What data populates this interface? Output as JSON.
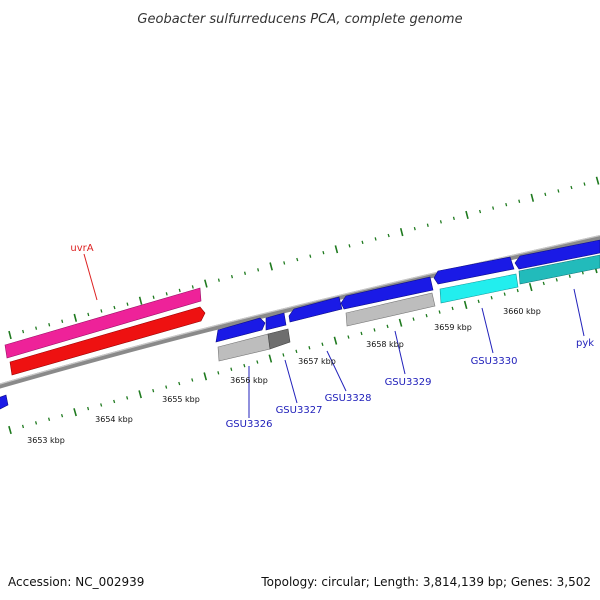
{
  "title": "Geobacter sulfurreducens PCA, complete genome",
  "footer": {
    "accession": "Accession: NC_002939",
    "summary": "Topology: circular; Length: 3,814,139 bp; Genes: 3,502"
  },
  "ticks": [
    {
      "label": "3653 kbp"
    },
    {
      "label": "3654 kbp"
    },
    {
      "label": "3655 kbp"
    },
    {
      "label": "3656 kbp"
    },
    {
      "label": "3657 kbp"
    },
    {
      "label": "3658 kbp"
    },
    {
      "label": "3659 kbp"
    },
    {
      "label": "3660 kbp"
    }
  ],
  "gene_labels": [
    {
      "text": "uvrA",
      "color": "#dd2222"
    },
    {
      "text": "GSU3326",
      "color": "#2222bb"
    },
    {
      "text": "GSU3327",
      "color": "#2222bb"
    },
    {
      "text": "GSU3328",
      "color": "#2222bb"
    },
    {
      "text": "GSU3329",
      "color": "#2222bb"
    },
    {
      "text": "GSU3330",
      "color": "#2222bb"
    },
    {
      "text": "pyk",
      "color": "#2222bb"
    }
  ],
  "colors": {
    "backbone": "#8a8a8a",
    "tick": "#1f7a1f",
    "gene_blue": "#1a1ae6",
    "gene_pink": "#ee2299",
    "gene_red": "#ee1111",
    "gene_gray": "#b8b8b8",
    "gene_darkgray": "#6e6e6e",
    "gene_cyan": "#22eeee",
    "gene_teal": "#22bbbb"
  }
}
